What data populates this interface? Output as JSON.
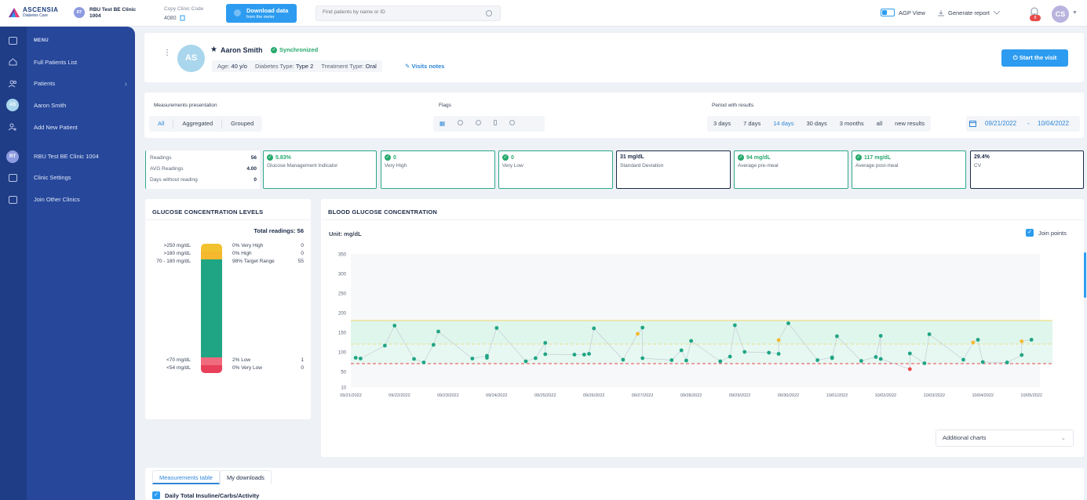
{
  "header": {
    "logo_brand": "ASCENSIA",
    "logo_sub": "Diabetes Care",
    "clinic_badge": "RT",
    "clinic_name_line1": "RBU Test BE Clinic",
    "clinic_name_line2": "1004",
    "copy_code_label": "Copy Clinic Code",
    "copy_code_value": "4080",
    "download_title": "Download data",
    "download_sub": "from the meter",
    "search_placeholder": "Find patients by name or ID",
    "agp_label": "AGP View",
    "generate_report": "Generate report",
    "notification_count": "8",
    "user_initials": "CS"
  },
  "sidebar": {
    "menu_title": "MENU",
    "items": [
      {
        "label": "Full Patients List"
      },
      {
        "label": "Patients"
      },
      {
        "label": "Aaron Smith"
      },
      {
        "label": "Add New Patient"
      },
      {
        "label": "RBU Test BE Clinic 1004"
      },
      {
        "label": "Clinic Settings"
      },
      {
        "label": "Join Other Clinics"
      }
    ],
    "rail_patient_initials": "AS",
    "rail_clinic_initials": "RT"
  },
  "patient": {
    "initials": "AS",
    "name": "Aaron Smith",
    "sync_status": "Synchronized",
    "age_label": "Age:",
    "age_value": "40 y/o",
    "diabetes_label": "Diabetes Type:",
    "diabetes_value": "Type 2",
    "treatment_label": "Treatment Type:",
    "treatment_value": "Oral",
    "visits_notes": "Visits notes",
    "start_visit": "Start the visit"
  },
  "filters": {
    "measurements_label": "Measurements presentation",
    "measurements_options": [
      "All",
      "Aggregated",
      "Grouped"
    ],
    "measurements_active": "All",
    "flags_label": "Flags",
    "period_label": "Period with results",
    "period_options": [
      "3 days",
      "7 days",
      "14 days",
      "30 days",
      "3 months",
      "all",
      "new results"
    ],
    "period_active": "14 days",
    "date_from": "09/21/2022",
    "date_sep": "-",
    "date_to": "10/04/2022"
  },
  "stats": {
    "readings_label": "Readings",
    "readings_value": "56",
    "avg_label": "AVG Readings",
    "avg_value": "4.00",
    "days_without_label": "Days without reading",
    "days_without_value": "0"
  },
  "metrics": [
    {
      "value": "5.83%",
      "label": "Glucose Management Indicator",
      "check": true
    },
    {
      "value": "0",
      "label": "Very High",
      "check": true
    },
    {
      "value": "0",
      "label": "Very Low",
      "check": true
    },
    {
      "value": "31 mg/dL",
      "label": "Standard Deviation",
      "check": false
    },
    {
      "value": "94 mg/dL",
      "label": "Average pre-meal",
      "check": true
    },
    {
      "value": "117 mg/dL",
      "label": "Average post-meal",
      "check": true
    },
    {
      "value": "29.4%",
      "label": "CV",
      "check": false
    }
  ],
  "gcl": {
    "title": "GLUCOSE CONCENTRATION LEVELS",
    "total_label": "Total readings:",
    "total_value": "56",
    "levels": [
      {
        "range": ">250 mg/dL",
        "pct": "0% Very High",
        "count": "0",
        "fraction": 0.0,
        "color": "#f2c12e"
      },
      {
        "range": ">180 mg/dL",
        "pct": "0% High",
        "count": "0",
        "fraction": 0.0,
        "color": "#f5b82e"
      },
      {
        "range": "70 - 180 mg/dL",
        "pct": "98% Target Range",
        "count": "55",
        "fraction": 0.98,
        "color": "#1fa584"
      },
      {
        "range": "<70 mg/dL",
        "pct": "2% Low",
        "count": "1",
        "fraction": 0.02,
        "color": "#f06b7d"
      },
      {
        "range": "<54 mg/dL",
        "pct": "0% Very Low",
        "count": "0",
        "fraction": 0.0,
        "color": "#e8405a"
      }
    ]
  },
  "bgc": {
    "title": "BLOOD GLUCOSE CONCENTRATION",
    "unit_label": "Unit: mg/dL",
    "join_points": "Join points",
    "additional_charts": "Additional charts"
  },
  "chart_data": {
    "type": "scatter",
    "title": "BLOOD GLUCOSE CONCENTRATION",
    "ylabel": "",
    "xlabel": "",
    "ylim": [
      10,
      350
    ],
    "yticks": [
      10,
      50,
      100,
      150,
      200,
      250,
      300,
      350
    ],
    "x_tick_labels": [
      "09/21/2022",
      "09/22/2022",
      "09/23/2022",
      "09/24/2022",
      "09/25/2022",
      "09/26/2022",
      "09/27/2022",
      "09/28/2022",
      "09/29/2022",
      "09/30/2022",
      "10/01/2022",
      "10/02/2022",
      "10/03/2022",
      "10/04/2022",
      "10/05/2022"
    ],
    "target_range": [
      70,
      180
    ],
    "join_points": true,
    "points": [
      {
        "day": 0.1,
        "y": 85,
        "status": "normal"
      },
      {
        "day": 0.2,
        "y": 83,
        "status": "normal"
      },
      {
        "day": 0.7,
        "y": 116,
        "status": "normal"
      },
      {
        "day": 0.9,
        "y": 167,
        "status": "normal"
      },
      {
        "day": 1.3,
        "y": 82,
        "status": "normal"
      },
      {
        "day": 1.5,
        "y": 73,
        "status": "normal"
      },
      {
        "day": 1.7,
        "y": 118,
        "status": "normal"
      },
      {
        "day": 1.8,
        "y": 152,
        "status": "normal"
      },
      {
        "day": 2.5,
        "y": 83,
        "status": "normal"
      },
      {
        "day": 2.8,
        "y": 90,
        "status": "normal"
      },
      {
        "day": 2.8,
        "y": 85,
        "status": "normal"
      },
      {
        "day": 3.0,
        "y": 161,
        "status": "normal"
      },
      {
        "day": 3.6,
        "y": 76,
        "status": "normal"
      },
      {
        "day": 3.8,
        "y": 84,
        "status": "normal"
      },
      {
        "day": 4.0,
        "y": 123,
        "status": "normal"
      },
      {
        "day": 4.0,
        "y": 94,
        "status": "normal"
      },
      {
        "day": 4.6,
        "y": 93,
        "status": "normal"
      },
      {
        "day": 4.8,
        "y": 93,
        "status": "normal"
      },
      {
        "day": 4.9,
        "y": 95,
        "status": "normal"
      },
      {
        "day": 5.0,
        "y": 160,
        "status": "normal"
      },
      {
        "day": 5.6,
        "y": 80,
        "status": "normal"
      },
      {
        "day": 5.9,
        "y": 146,
        "status": "high"
      },
      {
        "day": 6.0,
        "y": 162,
        "status": "normal"
      },
      {
        "day": 6.0,
        "y": 84,
        "status": "normal"
      },
      {
        "day": 6.6,
        "y": 79,
        "status": "normal"
      },
      {
        "day": 6.8,
        "y": 104,
        "status": "normal"
      },
      {
        "day": 6.9,
        "y": 78,
        "status": "normal"
      },
      {
        "day": 7.0,
        "y": 128,
        "status": "normal"
      },
      {
        "day": 7.6,
        "y": 76,
        "status": "normal"
      },
      {
        "day": 7.8,
        "y": 88,
        "status": "normal"
      },
      {
        "day": 7.9,
        "y": 168,
        "status": "normal"
      },
      {
        "day": 8.1,
        "y": 100,
        "status": "normal"
      },
      {
        "day": 8.6,
        "y": 98,
        "status": "normal"
      },
      {
        "day": 8.8,
        "y": 95,
        "status": "normal"
      },
      {
        "day": 8.8,
        "y": 130,
        "status": "high"
      },
      {
        "day": 9.0,
        "y": 173,
        "status": "normal"
      },
      {
        "day": 9.6,
        "y": 79,
        "status": "normal"
      },
      {
        "day": 9.9,
        "y": 86,
        "status": "normal"
      },
      {
        "day": 9.9,
        "y": 84,
        "status": "normal"
      },
      {
        "day": 10.0,
        "y": 140,
        "status": "normal"
      },
      {
        "day": 10.5,
        "y": 77,
        "status": "normal"
      },
      {
        "day": 10.8,
        "y": 87,
        "status": "normal"
      },
      {
        "day": 10.9,
        "y": 141,
        "status": "normal"
      },
      {
        "day": 10.9,
        "y": 82,
        "status": "normal"
      },
      {
        "day": 11.5,
        "y": 56,
        "status": "low"
      },
      {
        "day": 11.5,
        "y": 96,
        "status": "normal"
      },
      {
        "day": 11.8,
        "y": 71,
        "status": "normal"
      },
      {
        "day": 11.9,
        "y": 145,
        "status": "normal"
      },
      {
        "day": 12.6,
        "y": 80,
        "status": "normal"
      },
      {
        "day": 12.8,
        "y": 124,
        "status": "high"
      },
      {
        "day": 12.9,
        "y": 131,
        "status": "normal"
      },
      {
        "day": 13.0,
        "y": 74,
        "status": "normal"
      },
      {
        "day": 13.5,
        "y": 73,
        "status": "normal"
      },
      {
        "day": 13.8,
        "y": 92,
        "status": "normal"
      },
      {
        "day": 13.8,
        "y": 127,
        "status": "high"
      },
      {
        "day": 14.0,
        "y": 131,
        "status": "normal"
      }
    ]
  },
  "bottom": {
    "tabs": [
      "Measurements table",
      "My downloads"
    ],
    "active_tab": "Measurements table",
    "daily_total": "Daily Total Insuline/Carbs/Activity"
  },
  "colors": {
    "accent": "#2d9cf0",
    "sidebar": "#26479a",
    "target_green": "#1fa584",
    "high_yellow": "#f5b82e",
    "low_red": "#e84949"
  }
}
